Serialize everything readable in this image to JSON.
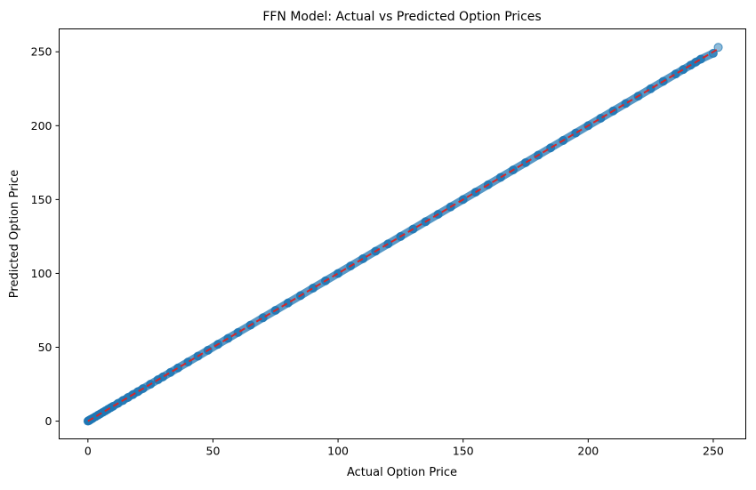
{
  "chart_data": {
    "type": "scatter",
    "title": "FFN Model: Actual vs Predicted Option Prices",
    "xlabel": "Actual Option Price",
    "ylabel": "Predicted Option Price",
    "xlim": [
      -11.5,
      263.0
    ],
    "ylim": [
      -12.0,
      265.5
    ],
    "xticks": [
      0,
      50,
      100,
      150,
      200,
      250
    ],
    "yticks": [
      0,
      50,
      100,
      150,
      200,
      250
    ],
    "xtick_labels": [
      "0",
      "50",
      "100",
      "150",
      "200",
      "250"
    ],
    "ytick_labels": [
      "0",
      "50",
      "100",
      "150",
      "200",
      "250"
    ],
    "grid": false,
    "point_color": "#1f77b4",
    "point_alpha": 0.5,
    "reference_line": {
      "style": "dashed",
      "color": "#d62728",
      "x": [
        0,
        252
      ],
      "y": [
        0,
        252
      ]
    },
    "points": {
      "x": [
        0,
        0.3,
        0.5,
        0.8,
        1,
        1.5,
        2,
        3,
        4,
        5,
        6,
        7,
        8,
        9,
        10,
        12,
        14,
        16,
        18,
        20,
        22,
        25,
        28,
        30,
        33,
        36,
        40,
        44,
        48,
        52,
        56,
        60,
        65,
        70,
        75,
        80,
        85,
        90,
        95,
        100,
        105,
        110,
        115,
        120,
        125,
        130,
        135,
        140,
        145,
        150,
        155,
        160,
        165,
        170,
        175,
        180,
        185,
        190,
        195,
        200,
        205,
        210,
        215,
        220,
        225,
        230,
        235,
        238,
        241,
        243,
        245,
        250,
        252
      ],
      "y": [
        0,
        0.3,
        0.5,
        0.8,
        1,
        1.5,
        2,
        3,
        4,
        5,
        6,
        7,
        8,
        9,
        10,
        12,
        14,
        16,
        18,
        20,
        22,
        25,
        28,
        30,
        33,
        36,
        40,
        44,
        48,
        52,
        56,
        60,
        65,
        70,
        75,
        80,
        85,
        90,
        95,
        100,
        105,
        110,
        115,
        120,
        125,
        130,
        135,
        140,
        145,
        150,
        155,
        160,
        165,
        170,
        175,
        180,
        185,
        190,
        195,
        200,
        205,
        210,
        215,
        220,
        225,
        230,
        235,
        238,
        241,
        243,
        245,
        249,
        253
      ]
    }
  }
}
